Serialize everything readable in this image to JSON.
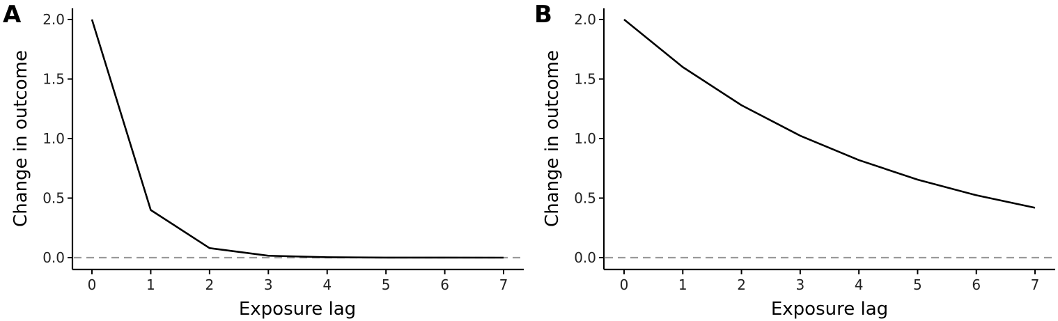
{
  "chart_data": [
    {
      "type": "line",
      "panel_label": "A",
      "xlabel": "Exposure lag",
      "ylabel": "Change in outcome",
      "xlim": [
        0,
        7
      ],
      "ylim": [
        0,
        2
      ],
      "x_ticks": [
        "0",
        "1",
        "2",
        "3",
        "4",
        "5",
        "6",
        "7"
      ],
      "y_ticks": [
        "0.0",
        "0.5",
        "1.0",
        "1.5",
        "2.0"
      ],
      "reference_line": {
        "y": 0,
        "style": "dashed",
        "color": "#999999"
      },
      "grid": false,
      "series": [
        {
          "x": [
            0,
            1,
            2,
            3,
            4,
            5,
            6,
            7
          ],
          "values": [
            2.0,
            0.4,
            0.08,
            0.016,
            0.0032,
            0.00064,
            0.000128,
            2.56e-05
          ]
        }
      ]
    },
    {
      "type": "line",
      "panel_label": "B",
      "xlabel": "Exposure lag",
      "ylabel": "Change in outcome",
      "xlim": [
        0,
        7
      ],
      "ylim": [
        0,
        2
      ],
      "x_ticks": [
        "0",
        "1",
        "2",
        "3",
        "4",
        "5",
        "6",
        "7"
      ],
      "y_ticks": [
        "0.0",
        "0.5",
        "1.0",
        "1.5",
        "2.0"
      ],
      "reference_line": {
        "y": 0,
        "style": "dashed",
        "color": "#999999"
      },
      "grid": false,
      "series": [
        {
          "x": [
            0,
            1,
            2,
            3,
            4,
            5,
            6,
            7
          ],
          "values": [
            2.0,
            1.6,
            1.28,
            1.024,
            0.819,
            0.655,
            0.524,
            0.419
          ]
        }
      ]
    }
  ]
}
